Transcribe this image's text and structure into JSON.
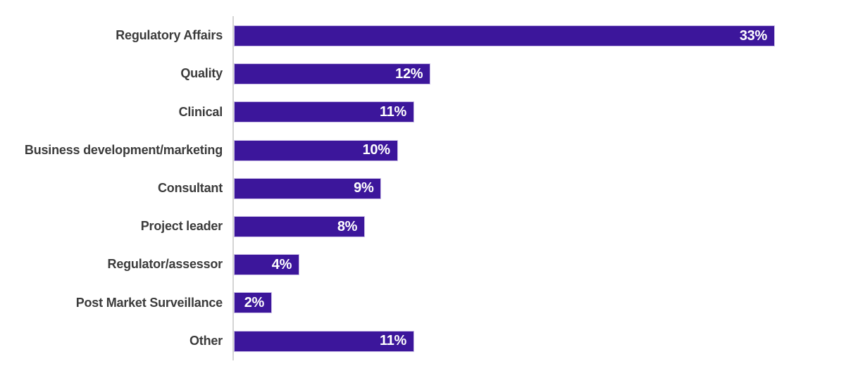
{
  "page": {
    "background_color": "#ffffff"
  },
  "chart_data": {
    "type": "bar",
    "orientation": "horizontal",
    "title": "",
    "xlabel": "",
    "ylabel": "",
    "categories": [
      "Regulatory Affairs",
      "Quality",
      "Clinical",
      "Business development/marketing",
      "Consultant",
      "Project leader",
      "Regulator/assessor",
      "Post Market Surveillance",
      "Other"
    ],
    "values": [
      33,
      12,
      11,
      10,
      9,
      8,
      4,
      2,
      11
    ],
    "value_labels": [
      "33%",
      "12%",
      "11%",
      "10%",
      "9%",
      "8%",
      "4%",
      "2%",
      "11%"
    ],
    "xlim": [
      0,
      33
    ],
    "grid": false,
    "legend": "none",
    "bar_color": "#3c169b",
    "bar_border_color": "#c9bce6",
    "category_label_color": "#3b3b3b",
    "value_label_color": "#ffffff",
    "axis_line_color": "#d4d4d4"
  }
}
